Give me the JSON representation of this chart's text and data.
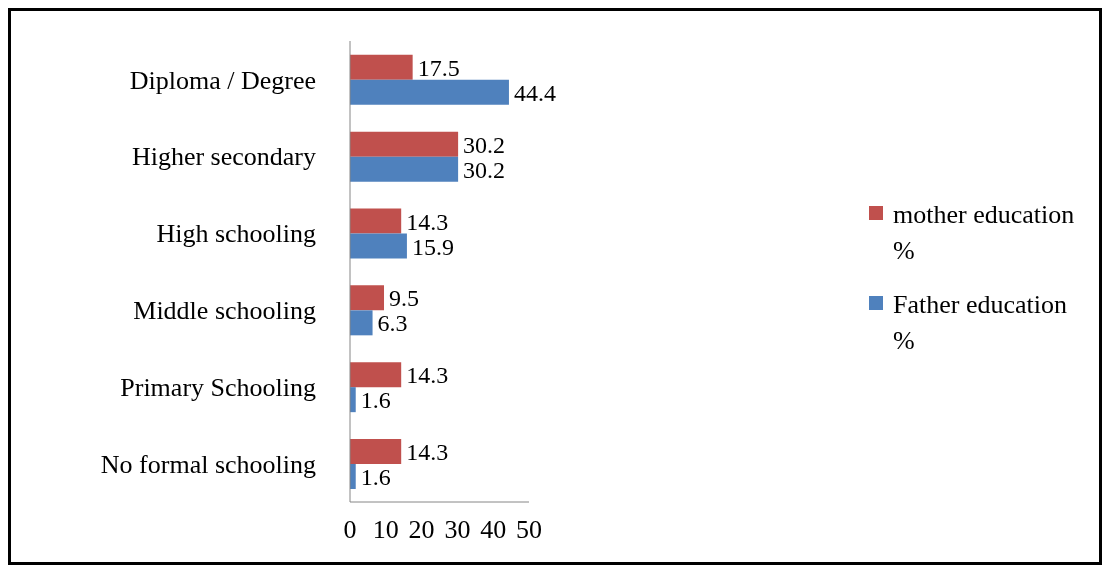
{
  "chart_data": {
    "type": "bar",
    "orientation": "horizontal",
    "categories": [
      "Diploma / Degree",
      "Higher secondary",
      "High schooling",
      "Middle schooling",
      "Primary Schooling",
      "No formal schooling"
    ],
    "series": [
      {
        "name": "mother education %",
        "color": "#c0504d",
        "values": [
          17.5,
          30.2,
          14.3,
          9.5,
          14.3,
          14.3
        ]
      },
      {
        "name": "Father education %",
        "color": "#4f81bd",
        "values": [
          44.4,
          30.2,
          15.9,
          6.3,
          1.6,
          1.6
        ]
      }
    ],
    "xlim": [
      0,
      50
    ],
    "xticks": [
      0,
      10,
      20,
      30,
      40,
      50
    ],
    "data_labels": true,
    "legend": "right",
    "grid": false
  }
}
